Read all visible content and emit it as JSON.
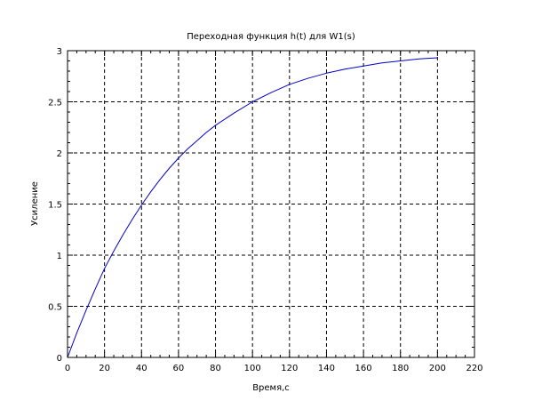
{
  "chart_data": {
    "type": "line",
    "title": "Переходная функция h(t) для W1(s)",
    "xlabel": "Время,с",
    "ylabel": "Усиление",
    "xlim": [
      0,
      220
    ],
    "ylim": [
      0,
      3
    ],
    "x_ticks": [
      "0",
      "20",
      "40",
      "60",
      "80",
      "100",
      "120",
      "140",
      "160",
      "180",
      "200",
      "220"
    ],
    "y_ticks": [
      "0",
      "0.5",
      "1",
      "1.5",
      "2",
      "2.5",
      "3"
    ],
    "grid": "dashed",
    "series": [
      {
        "color": "#0000cc",
        "x": [
          0,
          5,
          10,
          15,
          20,
          25,
          30,
          35,
          40,
          45,
          50,
          55,
          60,
          65,
          70,
          75,
          80,
          90,
          100,
          110,
          120,
          130,
          140,
          150,
          160,
          170,
          180,
          190,
          200
        ],
        "y": [
          0,
          0.24,
          0.46,
          0.67,
          0.87,
          1.04,
          1.2,
          1.35,
          1.49,
          1.62,
          1.74,
          1.85,
          1.95,
          2.04,
          2.12,
          2.2,
          2.27,
          2.39,
          2.5,
          2.59,
          2.67,
          2.73,
          2.78,
          2.82,
          2.85,
          2.88,
          2.9,
          2.92,
          2.93
        ]
      }
    ]
  }
}
